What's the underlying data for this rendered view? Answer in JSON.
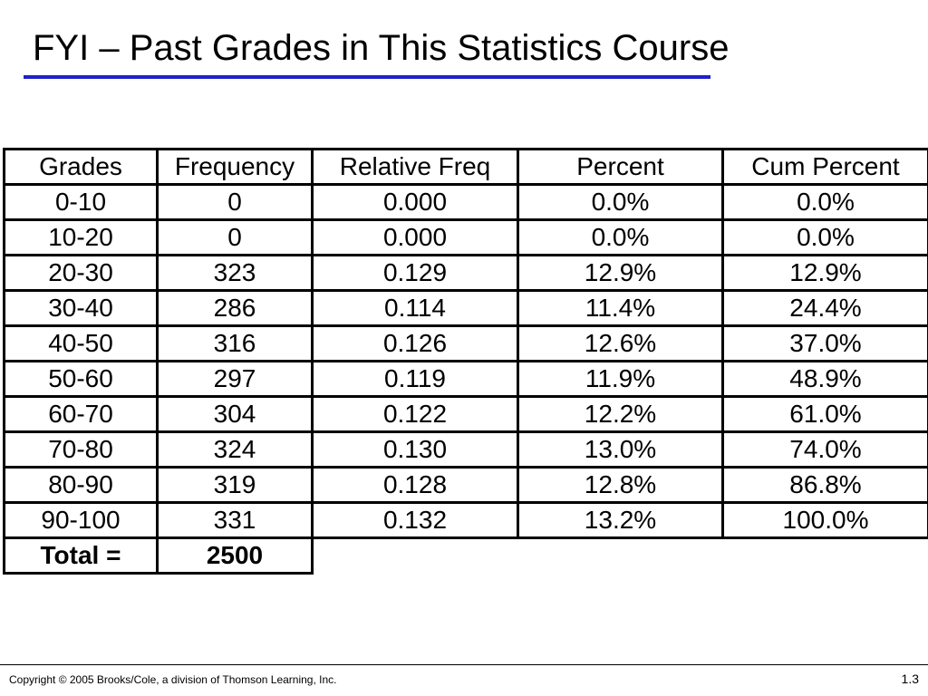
{
  "title": "FYI – Past Grades in This Statistics Course",
  "accent_color": "#1d22c9",
  "table": {
    "headers": [
      "Grades",
      "Frequency",
      "Relative Freq",
      "Percent",
      "Cum Percent"
    ],
    "rows": [
      [
        "0-10",
        "0",
        "0.000",
        "0.0%",
        "0.0%"
      ],
      [
        "10-20",
        "0",
        "0.000",
        "0.0%",
        "0.0%"
      ],
      [
        "20-30",
        "323",
        "0.129",
        "12.9%",
        "12.9%"
      ],
      [
        "30-40",
        "286",
        "0.114",
        "11.4%",
        "24.4%"
      ],
      [
        "40-50",
        "316",
        "0.126",
        "12.6%",
        "37.0%"
      ],
      [
        "50-60",
        "297",
        "0.119",
        "11.9%",
        "48.9%"
      ],
      [
        "60-70",
        "304",
        "0.122",
        "12.2%",
        "61.0%"
      ],
      [
        "70-80",
        "324",
        "0.130",
        "13.0%",
        "74.0%"
      ],
      [
        "80-90",
        "319",
        "0.128",
        "12.8%",
        "86.8%"
      ],
      [
        "90-100",
        "331",
        "0.132",
        "13.2%",
        "100.0%"
      ]
    ],
    "total_label": "Total =",
    "total_value": "2500"
  },
  "footer": {
    "copyright": "Copyright © 2005 Brooks/Cole, a division of Thomson Learning, Inc.",
    "slide_number": "1.3"
  }
}
